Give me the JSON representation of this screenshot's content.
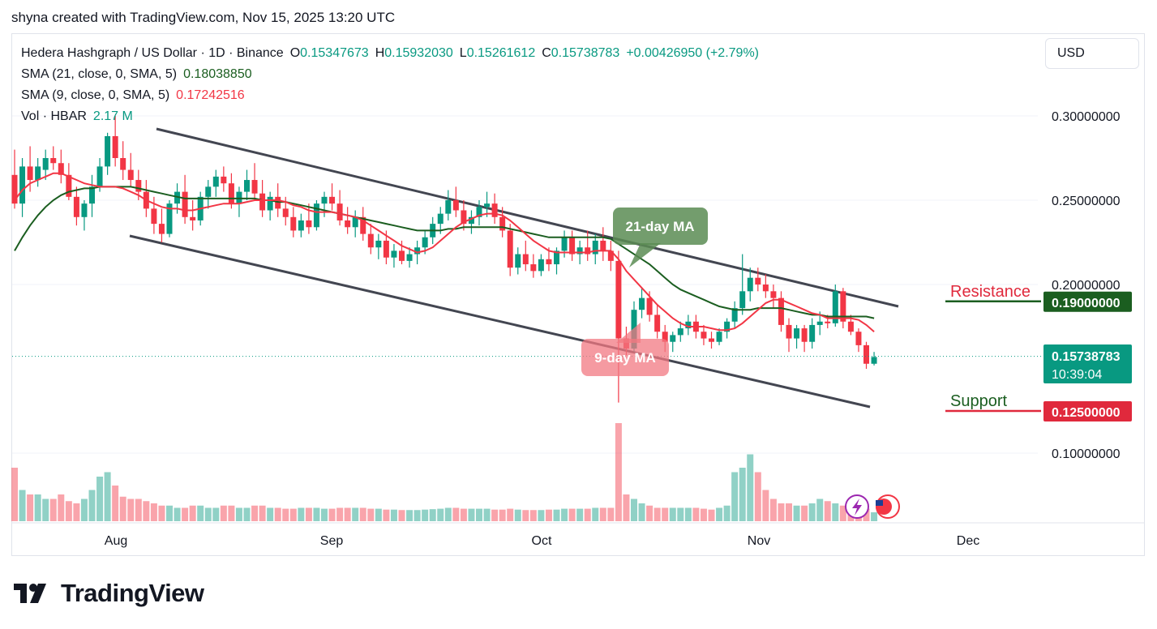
{
  "header": {
    "attribution": "shyna created with TradingView.com, Nov 15, 2025 13:20 UTC"
  },
  "legend": {
    "symbol": "Hedera Hashgraph / US Dollar · 1D · Binance",
    "open_label": "O",
    "open": "0.15347673",
    "high_label": "H",
    "high": "0.15932030",
    "low_label": "L",
    "low": "0.15261612",
    "close_label": "C",
    "close": "0.15738783",
    "change": "+0.00426950 (+2.79%)",
    "sma21_label": "SMA (21, close, 0, SMA, 5)",
    "sma21_value": "0.18038850",
    "sma9_label": "SMA (9, close, 0, SMA, 5)",
    "sma9_value": "0.17242516",
    "vol_label": "Vol · HBAR",
    "vol_value": "2.17 M"
  },
  "currency_button": "USD",
  "brand": "TradingView",
  "colors": {
    "up": "#089981",
    "down": "#f23645",
    "sma21": "#1b5e20",
    "sma9": "#f23645",
    "channel": "#434651",
    "resistance": "#1b5e20",
    "support": "#e0293c"
  },
  "chart_data": {
    "type": "candlestick",
    "x_ticks": [
      "Aug",
      "Sep",
      "Oct",
      "Nov",
      "Dec"
    ],
    "y_ticks": [
      "0.30000000",
      "0.25000000",
      "0.20000000",
      "0.10000000"
    ],
    "ylim": [
      0.075,
      0.31
    ],
    "last_price": "0.15738783",
    "countdown": "10:39:04",
    "resistance": {
      "label": "Resistance",
      "value": 0.19,
      "text": "0.19000000"
    },
    "support": {
      "label": "Support",
      "value": 0.125,
      "text": "0.12500000"
    },
    "annotations": [
      {
        "text": "21-day MA"
      },
      {
        "text": "9-day MA"
      }
    ],
    "candles": [
      [
        0.265,
        0.28,
        0.245,
        0.248
      ],
      [
        0.248,
        0.275,
        0.24,
        0.27
      ],
      [
        0.27,
        0.282,
        0.255,
        0.262
      ],
      [
        0.262,
        0.275,
        0.258,
        0.27
      ],
      [
        0.268,
        0.28,
        0.262,
        0.275
      ],
      [
        0.275,
        0.282,
        0.268,
        0.272
      ],
      [
        0.272,
        0.28,
        0.26,
        0.265
      ],
      [
        0.265,
        0.272,
        0.25,
        0.252
      ],
      [
        0.252,
        0.258,
        0.235,
        0.24
      ],
      [
        0.24,
        0.25,
        0.232,
        0.248
      ],
      [
        0.248,
        0.265,
        0.24,
        0.258
      ],
      [
        0.258,
        0.275,
        0.255,
        0.27
      ],
      [
        0.27,
        0.29,
        0.265,
        0.288
      ],
      [
        0.288,
        0.3,
        0.27,
        0.275
      ],
      [
        0.275,
        0.285,
        0.262,
        0.268
      ],
      [
        0.268,
        0.278,
        0.258,
        0.262
      ],
      [
        0.262,
        0.268,
        0.25,
        0.255
      ],
      [
        0.255,
        0.262,
        0.24,
        0.245
      ],
      [
        0.245,
        0.252,
        0.23,
        0.236
      ],
      [
        0.236,
        0.245,
        0.225,
        0.23
      ],
      [
        0.23,
        0.25,
        0.228,
        0.248
      ],
      [
        0.248,
        0.26,
        0.242,
        0.255
      ],
      [
        0.255,
        0.265,
        0.236,
        0.24
      ],
      [
        0.24,
        0.25,
        0.232,
        0.238
      ],
      [
        0.238,
        0.255,
        0.235,
        0.252
      ],
      [
        0.252,
        0.262,
        0.245,
        0.258
      ],
      [
        0.258,
        0.268,
        0.252,
        0.264
      ],
      [
        0.264,
        0.27,
        0.255,
        0.26
      ],
      [
        0.26,
        0.266,
        0.245,
        0.248
      ],
      [
        0.248,
        0.258,
        0.24,
        0.255
      ],
      [
        0.255,
        0.268,
        0.25,
        0.262
      ],
      [
        0.262,
        0.272,
        0.25,
        0.254
      ],
      [
        0.254,
        0.262,
        0.24,
        0.244
      ],
      [
        0.244,
        0.255,
        0.238,
        0.252
      ],
      [
        0.252,
        0.26,
        0.24,
        0.245
      ],
      [
        0.245,
        0.252,
        0.235,
        0.24
      ],
      [
        0.24,
        0.246,
        0.228,
        0.232
      ],
      [
        0.232,
        0.242,
        0.228,
        0.238
      ],
      [
        0.238,
        0.248,
        0.23,
        0.234
      ],
      [
        0.234,
        0.25,
        0.232,
        0.248
      ],
      [
        0.248,
        0.255,
        0.24,
        0.252
      ],
      [
        0.252,
        0.26,
        0.244,
        0.248
      ],
      [
        0.248,
        0.256,
        0.235,
        0.238
      ],
      [
        0.238,
        0.246,
        0.23,
        0.234
      ],
      [
        0.234,
        0.244,
        0.228,
        0.24
      ],
      [
        0.24,
        0.246,
        0.226,
        0.23
      ],
      [
        0.23,
        0.236,
        0.218,
        0.222
      ],
      [
        0.222,
        0.23,
        0.215,
        0.226
      ],
      [
        0.226,
        0.232,
        0.212,
        0.216
      ],
      [
        0.216,
        0.224,
        0.21,
        0.22
      ],
      [
        0.22,
        0.226,
        0.212,
        0.214
      ],
      [
        0.214,
        0.222,
        0.21,
        0.218
      ],
      [
        0.218,
        0.226,
        0.212,
        0.222
      ],
      [
        0.222,
        0.232,
        0.218,
        0.228
      ],
      [
        0.228,
        0.24,
        0.224,
        0.236
      ],
      [
        0.236,
        0.246,
        0.23,
        0.242
      ],
      [
        0.242,
        0.256,
        0.238,
        0.25
      ],
      [
        0.25,
        0.258,
        0.24,
        0.244
      ],
      [
        0.244,
        0.25,
        0.232,
        0.236
      ],
      [
        0.236,
        0.244,
        0.23,
        0.24
      ],
      [
        0.24,
        0.25,
        0.235,
        0.246
      ],
      [
        0.246,
        0.255,
        0.24,
        0.248
      ],
      [
        0.248,
        0.254,
        0.236,
        0.24
      ],
      [
        0.24,
        0.246,
        0.228,
        0.232
      ],
      [
        0.232,
        0.236,
        0.205,
        0.21
      ],
      [
        0.21,
        0.222,
        0.206,
        0.218
      ],
      [
        0.218,
        0.226,
        0.208,
        0.212
      ],
      [
        0.212,
        0.218,
        0.204,
        0.208
      ],
      [
        0.208,
        0.218,
        0.205,
        0.215
      ],
      [
        0.215,
        0.222,
        0.208,
        0.212
      ],
      [
        0.212,
        0.222,
        0.206,
        0.22
      ],
      [
        0.22,
        0.232,
        0.216,
        0.228
      ],
      [
        0.228,
        0.232,
        0.214,
        0.218
      ],
      [
        0.218,
        0.226,
        0.212,
        0.222
      ],
      [
        0.222,
        0.232,
        0.214,
        0.218
      ],
      [
        0.218,
        0.23,
        0.212,
        0.226
      ],
      [
        0.226,
        0.234,
        0.214,
        0.22
      ],
      [
        0.22,
        0.226,
        0.208,
        0.214
      ],
      [
        0.214,
        0.22,
        0.13,
        0.168
      ],
      [
        0.168,
        0.175,
        0.158,
        0.162
      ],
      [
        0.162,
        0.19,
        0.16,
        0.185
      ],
      [
        0.185,
        0.198,
        0.18,
        0.192
      ],
      [
        0.192,
        0.196,
        0.178,
        0.182
      ],
      [
        0.182,
        0.188,
        0.168,
        0.172
      ],
      [
        0.172,
        0.176,
        0.16,
        0.166
      ],
      [
        0.166,
        0.172,
        0.16,
        0.17
      ],
      [
        0.17,
        0.178,
        0.166,
        0.174
      ],
      [
        0.174,
        0.182,
        0.17,
        0.178
      ],
      [
        0.178,
        0.182,
        0.168,
        0.172
      ],
      [
        0.172,
        0.176,
        0.164,
        0.168
      ],
      [
        0.168,
        0.172,
        0.162,
        0.166
      ],
      [
        0.166,
        0.174,
        0.164,
        0.172
      ],
      [
        0.172,
        0.18,
        0.168,
        0.178
      ],
      [
        0.178,
        0.19,
        0.174,
        0.186
      ],
      [
        0.186,
        0.218,
        0.182,
        0.196
      ],
      [
        0.196,
        0.21,
        0.19,
        0.204
      ],
      [
        0.204,
        0.21,
        0.196,
        0.2
      ],
      [
        0.2,
        0.206,
        0.192,
        0.196
      ],
      [
        0.196,
        0.2,
        0.186,
        0.192
      ],
      [
        0.192,
        0.196,
        0.172,
        0.176
      ],
      [
        0.176,
        0.18,
        0.16,
        0.168
      ],
      [
        0.168,
        0.176,
        0.162,
        0.174
      ],
      [
        0.174,
        0.176,
        0.16,
        0.166
      ],
      [
        0.166,
        0.18,
        0.162,
        0.176
      ],
      [
        0.176,
        0.184,
        0.17,
        0.178
      ],
      [
        0.178,
        0.182,
        0.174,
        0.177
      ],
      [
        0.177,
        0.2,
        0.175,
        0.196
      ],
      [
        0.196,
        0.198,
        0.174,
        0.178
      ],
      [
        0.178,
        0.182,
        0.17,
        0.172
      ],
      [
        0.172,
        0.174,
        0.16,
        0.164
      ],
      [
        0.164,
        0.166,
        0.15,
        0.153
      ],
      [
        0.153,
        0.16,
        0.152,
        0.157
      ]
    ],
    "volume": [
      1.2,
      0.7,
      0.6,
      0.6,
      0.5,
      0.5,
      0.6,
      0.45,
      0.4,
      0.5,
      0.7,
      1.0,
      1.1,
      0.8,
      0.55,
      0.5,
      0.5,
      0.45,
      0.4,
      0.35,
      0.35,
      0.3,
      0.3,
      0.35,
      0.35,
      0.3,
      0.3,
      0.35,
      0.35,
      0.3,
      0.3,
      0.35,
      0.35,
      0.3,
      0.3,
      0.28,
      0.28,
      0.3,
      0.3,
      0.3,
      0.28,
      0.28,
      0.3,
      0.3,
      0.3,
      0.3,
      0.28,
      0.28,
      0.26,
      0.26,
      0.25,
      0.25,
      0.25,
      0.26,
      0.27,
      0.28,
      0.3,
      0.3,
      0.28,
      0.28,
      0.28,
      0.28,
      0.26,
      0.26,
      0.28,
      0.26,
      0.25,
      0.25,
      0.25,
      0.26,
      0.26,
      0.28,
      0.28,
      0.28,
      0.28,
      0.3,
      0.3,
      0.3,
      2.2,
      0.6,
      0.5,
      0.4,
      0.35,
      0.3,
      0.3,
      0.3,
      0.3,
      0.3,
      0.3,
      0.28,
      0.26,
      0.3,
      0.35,
      1.1,
      1.2,
      1.5,
      1.1,
      0.7,
      0.5,
      0.4,
      0.4,
      0.35,
      0.35,
      0.4,
      0.5,
      0.45,
      0.4,
      0.35,
      0.35,
      0.3,
      0.28,
      0.2
    ],
    "sma9": [
      0.25,
      0.256,
      0.26,
      0.262,
      0.264,
      0.266,
      0.266,
      0.264,
      0.262,
      0.26,
      0.259,
      0.258,
      0.258,
      0.258,
      0.257,
      0.255,
      0.253,
      0.25,
      0.248,
      0.246,
      0.245,
      0.245,
      0.244,
      0.244,
      0.245,
      0.246,
      0.247,
      0.248,
      0.248,
      0.248,
      0.249,
      0.25,
      0.25,
      0.25,
      0.25,
      0.249,
      0.247,
      0.246,
      0.244,
      0.243,
      0.243,
      0.243,
      0.242,
      0.241,
      0.24,
      0.238,
      0.235,
      0.232,
      0.229,
      0.226,
      0.223,
      0.221,
      0.219,
      0.22,
      0.222,
      0.226,
      0.23,
      0.234,
      0.237,
      0.239,
      0.241,
      0.242,
      0.242,
      0.241,
      0.238,
      0.234,
      0.23,
      0.226,
      0.223,
      0.22,
      0.219,
      0.219,
      0.219,
      0.219,
      0.219,
      0.22,
      0.22,
      0.22,
      0.215,
      0.208,
      0.203,
      0.198,
      0.193,
      0.188,
      0.184,
      0.18,
      0.177,
      0.175,
      0.175,
      0.175,
      0.174,
      0.173,
      0.173,
      0.174,
      0.177,
      0.181,
      0.185,
      0.189,
      0.191,
      0.191,
      0.189,
      0.187,
      0.185,
      0.183,
      0.182,
      0.18,
      0.18,
      0.18,
      0.18,
      0.179,
      0.176,
      0.172
    ],
    "sma21": [
      0.22,
      0.228,
      0.235,
      0.241,
      0.246,
      0.25,
      0.253,
      0.255,
      0.256,
      0.257,
      0.257,
      0.258,
      0.258,
      0.258,
      0.258,
      0.258,
      0.257,
      0.256,
      0.255,
      0.254,
      0.253,
      0.252,
      0.251,
      0.251,
      0.251,
      0.251,
      0.251,
      0.251,
      0.251,
      0.251,
      0.251,
      0.251,
      0.25,
      0.25,
      0.249,
      0.249,
      0.248,
      0.247,
      0.246,
      0.245,
      0.244,
      0.243,
      0.242,
      0.241,
      0.24,
      0.239,
      0.238,
      0.237,
      0.236,
      0.235,
      0.234,
      0.233,
      0.232,
      0.232,
      0.232,
      0.232,
      0.233,
      0.233,
      0.234,
      0.234,
      0.234,
      0.234,
      0.234,
      0.234,
      0.233,
      0.232,
      0.231,
      0.23,
      0.229,
      0.228,
      0.228,
      0.228,
      0.228,
      0.228,
      0.228,
      0.228,
      0.228,
      0.227,
      0.224,
      0.221,
      0.218,
      0.215,
      0.212,
      0.208,
      0.204,
      0.2,
      0.197,
      0.195,
      0.193,
      0.191,
      0.189,
      0.187,
      0.186,
      0.185,
      0.185,
      0.185,
      0.186,
      0.186,
      0.186,
      0.186,
      0.185,
      0.184,
      0.183,
      0.182,
      0.182,
      0.181,
      0.181,
      0.181,
      0.181,
      0.181,
      0.181,
      0.18
    ]
  }
}
